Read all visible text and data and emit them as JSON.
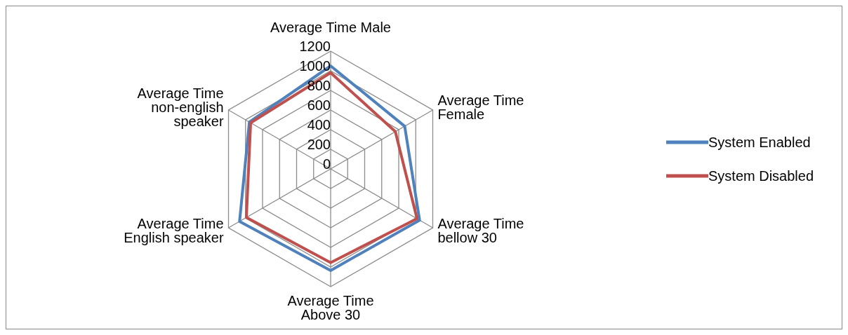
{
  "chart_data": {
    "type": "radar",
    "categories": [
      "Average Time Male",
      "Average Time Female",
      "Average Time bellow 30",
      "Average Time Above 30",
      "Average Time English speaker",
      "Average Time non-english speaker"
    ],
    "series": [
      {
        "name": "System Enabled",
        "color": "#4f81bd",
        "values": [
          1050,
          870,
          1045,
          1035,
          1070,
          955
        ]
      },
      {
        "name": "System Disabled",
        "color": "#c0504d",
        "values": [
          980,
          760,
          1015,
          955,
          990,
          940
        ]
      }
    ],
    "ylim": [
      0,
      1200
    ],
    "yticks": [
      0,
      200,
      400,
      600,
      800,
      1000,
      1200
    ],
    "grid": true,
    "legend": "right",
    "marker": "none"
  }
}
